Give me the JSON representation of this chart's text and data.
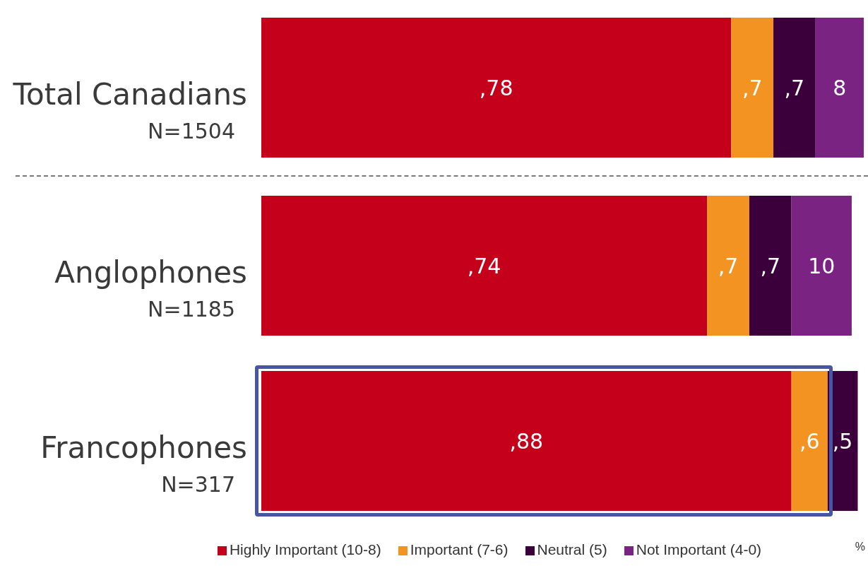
{
  "chart_data": [
    {
      "type": "bar",
      "orientation": "horizontal",
      "stacked": true,
      "categories": [
        "Total Canadians\nN=1504"
      ],
      "series": [
        {
          "color": "#c5001a",
          "values": [
            78
          ],
          "value_labels": [
            ",78"
          ]
        },
        {
          "color": "#f39322",
          "values": [
            7
          ],
          "value_labels": [
            ",7"
          ]
        },
        {
          "color": "#3b003b",
          "values": [
            7
          ],
          "value_labels": [
            ",7"
          ]
        },
        {
          "color": "#7a2383",
          "values": [
            8
          ],
          "value_labels": [
            "8"
          ]
        }
      ]
    },
    {
      "type": "bar",
      "orientation": "horizontal",
      "stacked": true,
      "categories": [
        "Anglophones\nN=1185",
        "Francophones\nN=317"
      ],
      "series": [
        {
          "name": "Highly Important (10-8)",
          "color": "#c5001a",
          "values": [
            74,
            88
          ],
          "value_labels": [
            ",74",
            ",88"
          ]
        },
        {
          "name": "Important (7-6)",
          "color": "#f39322",
          "values": [
            7,
            6
          ],
          "value_labels": [
            ",7",
            ",6"
          ]
        },
        {
          "name": "Neutral (5)",
          "color": "#3b003b",
          "values": [
            7,
            5
          ],
          "value_labels": [
            ",7",
            ",5"
          ]
        },
        {
          "name": "Not Important (4-0)",
          "color": "#7a2383",
          "values": [
            10,
            null
          ],
          "value_labels": [
            "10",
            null
          ]
        }
      ],
      "legend": "bottom",
      "annotations": [
        "%"
      ]
    }
  ]
}
